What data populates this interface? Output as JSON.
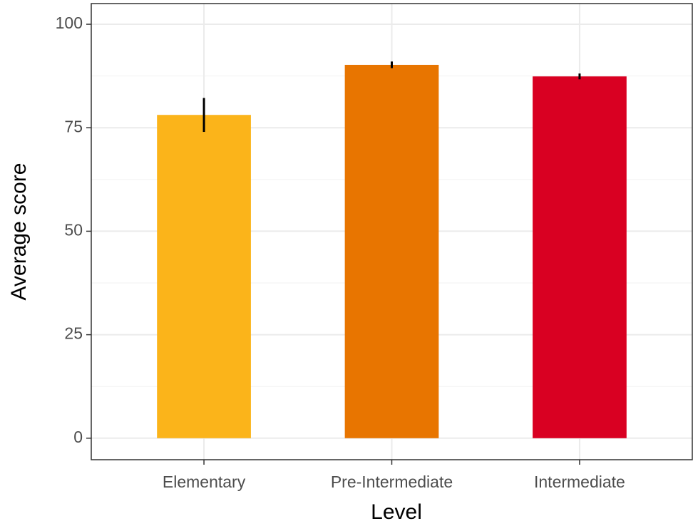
{
  "chart_data": {
    "type": "bar",
    "x_label": "Level",
    "y_label": "Average score",
    "categories": [
      "Elementary",
      "Pre-Intermediate",
      "Intermediate"
    ],
    "values": [
      78.1,
      90.2,
      87.4
    ],
    "errors": [
      4.1,
      0.8,
      0.7
    ],
    "colors": [
      "#fbb41a",
      "#e87500",
      "#d90022"
    ],
    "ylim": [
      -5.2,
      105
    ],
    "yticks": [
      0,
      25,
      50,
      75,
      100
    ],
    "y_minor_grid": [
      12.5,
      37.5,
      62.5,
      87.5
    ],
    "grid": true
  }
}
